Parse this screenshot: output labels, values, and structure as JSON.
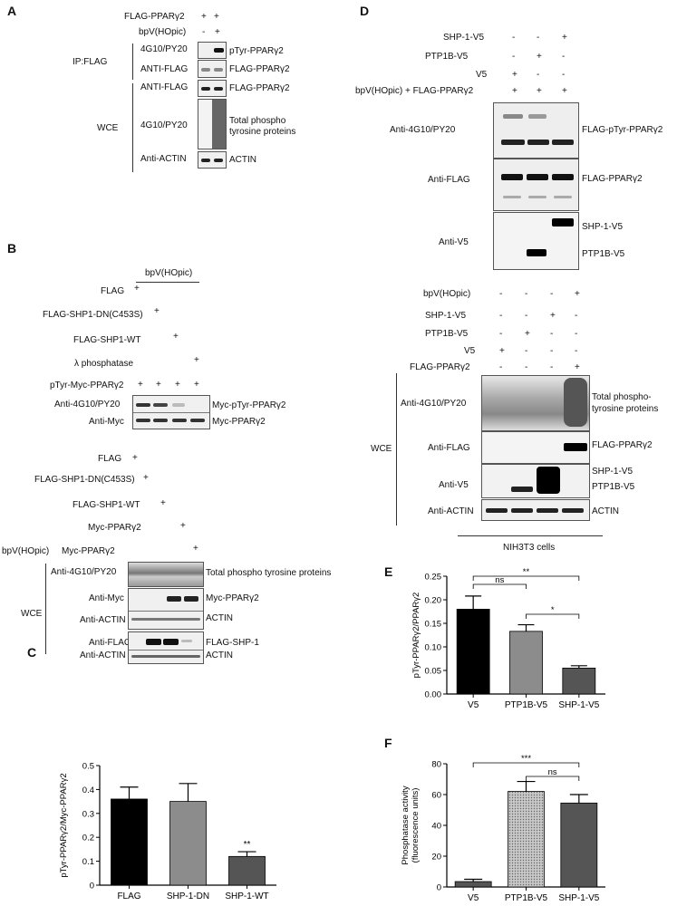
{
  "panels": {
    "A": "A",
    "B": "B",
    "C": "C",
    "D": "D",
    "E": "E",
    "F": "F"
  },
  "panel_a": {
    "cond_labels": [
      "FLAG-PPARγ2",
      "bpV(HOpic)"
    ],
    "cond_values": [
      [
        "+",
        "+"
      ],
      [
        "-",
        "+"
      ]
    ],
    "ip_label": "IP:FLAG",
    "wce_label": "WCE",
    "antibodies": [
      "4G10/PY20",
      "ANTI-FLAG",
      "ANTI-FLAG",
      "4G10/PY20",
      "Anti-ACTIN"
    ],
    "targets": [
      "pTyr-PPARγ2",
      "FLAG-PPARγ2",
      "FLAG-PPARγ2",
      "Total phospho",
      "tyrosine proteins",
      "ACTIN"
    ]
  },
  "panel_b": {
    "top_header": "bpV(HOpic)",
    "top_rows": [
      "FLAG",
      "FLAG-SHP1-DN(C453S)",
      "FLAG-SHP1-WT",
      "λ phosphatase",
      "pTyr-Myc-PPARγ2"
    ],
    "top_marks": [
      "+",
      "+",
      "+",
      "+"
    ],
    "top_ab": [
      "Anti-4G10/PY20",
      "Anti-Myc"
    ],
    "top_targets": [
      "Myc-pTyr-PPARγ2",
      "Myc-PPARγ2"
    ],
    "bottom_rows": [
      "FLAG",
      "FLAG-SHP1-DN(C453S)",
      "FLAG-SHP1-WT",
      "Myc-PPARγ2",
      "Myc-PPARγ2"
    ],
    "bottom_prefix": "bpV(HOpic)",
    "bottom_marks": [
      "+",
      "+",
      "+",
      "+",
      "+"
    ],
    "wce_label": "WCE",
    "bottom_ab": [
      "Anti-4G10/PY20",
      "Anti-Myc",
      "Anti-ACTIN",
      "Anti-FLAG",
      "Anti-ACTIN"
    ],
    "bottom_targets": [
      "Total phospho tyrosine proteins",
      "Myc-PPARγ2",
      "ACTIN",
      "FLAG-SHP-1",
      "ACTIN"
    ]
  },
  "panel_d": {
    "top_rows": [
      "SHP-1-V5",
      "PTP1B-V5",
      "V5",
      "bpV(HOpic) + FLAG-PPARγ2"
    ],
    "top_marks": [
      [
        "-",
        "-",
        "+"
      ],
      [
        "-",
        "+",
        "-"
      ],
      [
        "+",
        "-",
        "-"
      ],
      [
        "+",
        "+",
        "+"
      ]
    ],
    "top_ab": [
      "Anti-4G10/PY20",
      "Anti-FLAG",
      "Anti-V5"
    ],
    "top_targets": [
      "FLAG-pTyr-PPARγ2",
      "FLAG-PPARγ2",
      "SHP-1-V5",
      "PTP1B-V5"
    ],
    "bottom_rows": [
      "bpV(HOpic)",
      "SHP-1-V5",
      "PTP1B-V5",
      "V5",
      "FLAG-PPARγ2"
    ],
    "bottom_marks": [
      [
        "-",
        "-",
        "-",
        "+"
      ],
      [
        "-",
        "-",
        "+",
        "-"
      ],
      [
        "-",
        "+",
        "-",
        "-"
      ],
      [
        "+",
        "-",
        "-",
        "-"
      ],
      [
        "-",
        "-",
        "-",
        "+"
      ]
    ],
    "wce_label": "WCE",
    "bottom_ab": [
      "Anti-4G10/PY20",
      "Anti-FLAG",
      "Anti-V5",
      "Anti-ACTIN"
    ],
    "bottom_targets": [
      "Total phospho-",
      "tyrosine proteins",
      "FLAG-PPARγ2",
      "SHP-1-V5",
      "PTP1B-V5",
      "ACTIN"
    ],
    "cell_label": "NIH3T3 cells"
  },
  "chart_data": [
    {
      "id": "C",
      "type": "bar",
      "categories": [
        "FLAG",
        "SHP-1-DN",
        "SHP-1-WT"
      ],
      "values": [
        0.36,
        0.35,
        0.12
      ],
      "errors": [
        0.05,
        0.075,
        0.02
      ],
      "colors": [
        "#000000",
        "#8c8c8c",
        "#555555"
      ],
      "ylabel": "pTyr-PPARγ2/Myc-PPARγ2",
      "ylim": [
        0,
        0.5
      ],
      "yticks": [
        "0",
        "0.1",
        "0.2",
        "0.3",
        "0.4",
        "0.5"
      ],
      "annotations": [
        "**"
      ]
    },
    {
      "id": "E",
      "type": "bar",
      "categories": [
        "V5",
        "PTP1B-V5",
        "SHP-1-V5"
      ],
      "values": [
        0.18,
        0.133,
        0.055
      ],
      "errors": [
        0.028,
        0.014,
        0.005
      ],
      "colors": [
        "#000000",
        "#8c8c8c",
        "#555555"
      ],
      "ylabel": "pTyr-PPARγ2/PPARγ2",
      "ylim": [
        0,
        0.25
      ],
      "yticks": [
        "0.00",
        "0.05",
        "0.10",
        "0.15",
        "0.20",
        "0.25"
      ],
      "annotations": [
        "ns",
        "**",
        "*"
      ]
    },
    {
      "id": "F",
      "type": "bar",
      "categories": [
        "V5",
        "PTP1B-V5",
        "SHP-1-V5"
      ],
      "values": [
        3.5,
        62,
        54.5
      ],
      "errors": [
        1.5,
        6.5,
        5.5
      ],
      "colors": [
        "#555555",
        "#b5b5b5",
        "#555555"
      ],
      "ylabel": "Phosphatase activity",
      "ylabel2": "(fluorescence units)",
      "ylim": [
        0,
        80
      ],
      "yticks": [
        "0",
        "20",
        "40",
        "60",
        "80"
      ],
      "annotations": [
        "***",
        "ns"
      ]
    }
  ]
}
